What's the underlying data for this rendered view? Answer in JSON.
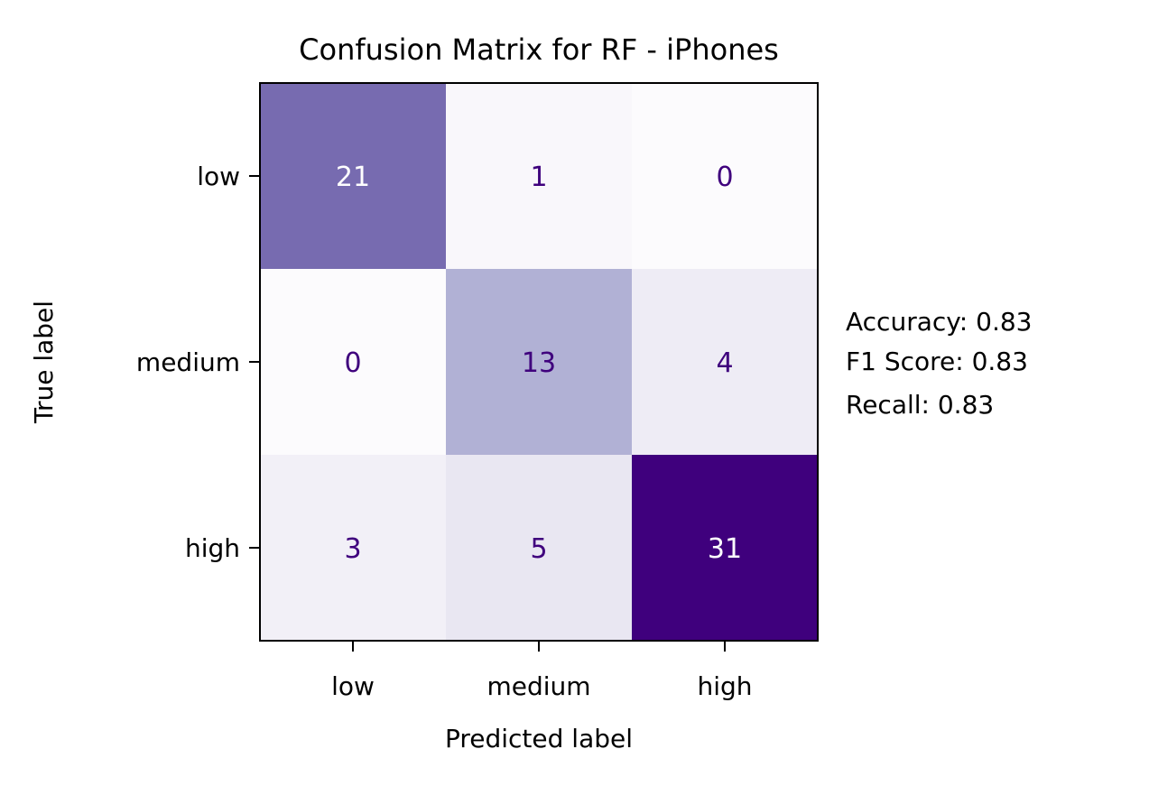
{
  "chart_data": {
    "type": "heatmap",
    "title": "Confusion Matrix for RF - iPhones",
    "xlabel": "Predicted label",
    "ylabel": "True label",
    "x_categories": [
      "low",
      "medium",
      "high"
    ],
    "y_categories": [
      "low",
      "medium",
      "high"
    ],
    "values": [
      [
        21,
        1,
        0
      ],
      [
        0,
        13,
        4
      ],
      [
        3,
        5,
        31
      ]
    ],
    "colormap": "Purples",
    "color_range": [
      0,
      31
    ],
    "colorbar": false,
    "grid": false,
    "text_color_dark_cells": "#ffffff",
    "text_color_light_cells": "#3f007d"
  },
  "metrics": {
    "lines": [
      "Accuracy: 0.83",
      "F1 Score: 0.83",
      "Recall: 0.83"
    ]
  }
}
